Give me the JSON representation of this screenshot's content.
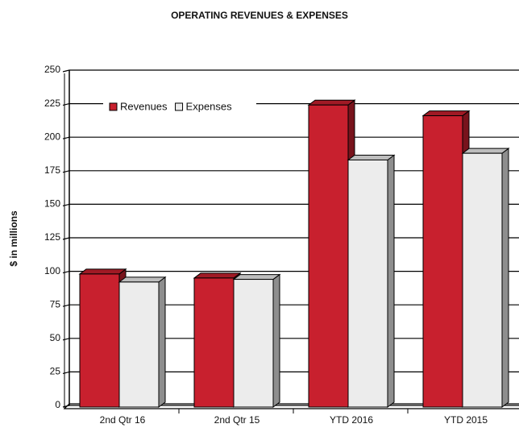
{
  "chart_data": {
    "type": "bar3d",
    "title": "OPERATING REVENUES & EXPENSES",
    "y_label": "$ in millions",
    "categories": [
      "2nd Qtr 16",
      "2nd Qtr 15",
      "YTD 2016",
      "YTD 2015"
    ],
    "series": [
      {
        "name": "Revenues",
        "color": "#c8202e",
        "values": [
          98,
          95,
          224,
          216
        ]
      },
      {
        "name": "Expenses",
        "color": "#ececec",
        "values": [
          92,
          94,
          183,
          188
        ]
      }
    ],
    "ylim": [
      0,
      250
    ],
    "yticks": [
      0,
      25,
      50,
      75,
      100,
      125,
      150,
      175,
      200,
      225,
      250
    ],
    "grid": true,
    "legend": "top-left"
  }
}
